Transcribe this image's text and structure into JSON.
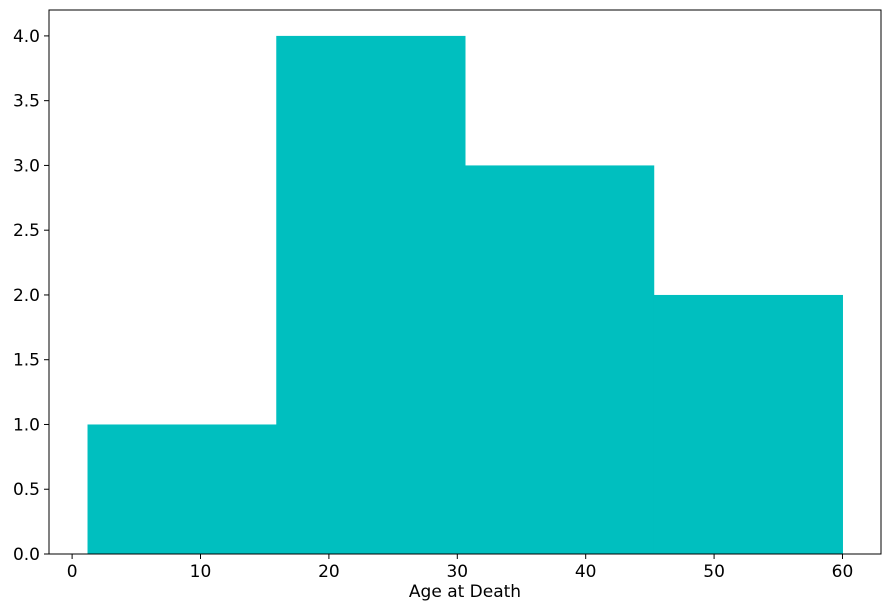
{
  "chart_data": {
    "type": "bar",
    "xlabel": "Age at Death",
    "ylabel": "",
    "bins": [
      {
        "x0": 1.2,
        "x1": 15.9,
        "value": 1
      },
      {
        "x0": 15.9,
        "x1": 30.6,
        "value": 4
      },
      {
        "x0": 30.6,
        "x1": 45.3,
        "value": 3
      },
      {
        "x0": 45.3,
        "x1": 60.0,
        "value": 2
      }
    ],
    "xlim": [
      -1.8,
      63.0
    ],
    "ylim": [
      0,
      4.2
    ],
    "xticks": [
      0,
      10,
      20,
      30,
      40,
      50,
      60
    ],
    "xtick_labels": [
      "0",
      "10",
      "20",
      "30",
      "40",
      "50",
      "60"
    ],
    "yticks": [
      0,
      0.5,
      1,
      1.5,
      2,
      2.5,
      3,
      3.5,
      4
    ],
    "ytick_labels": [
      "0.0",
      "0.5",
      "1.0",
      "1.5",
      "2.0",
      "2.5",
      "3.0",
      "3.5",
      "4.0"
    ],
    "grid": false,
    "bar_color": "#00bfbf",
    "axis_color": "#000000"
  }
}
